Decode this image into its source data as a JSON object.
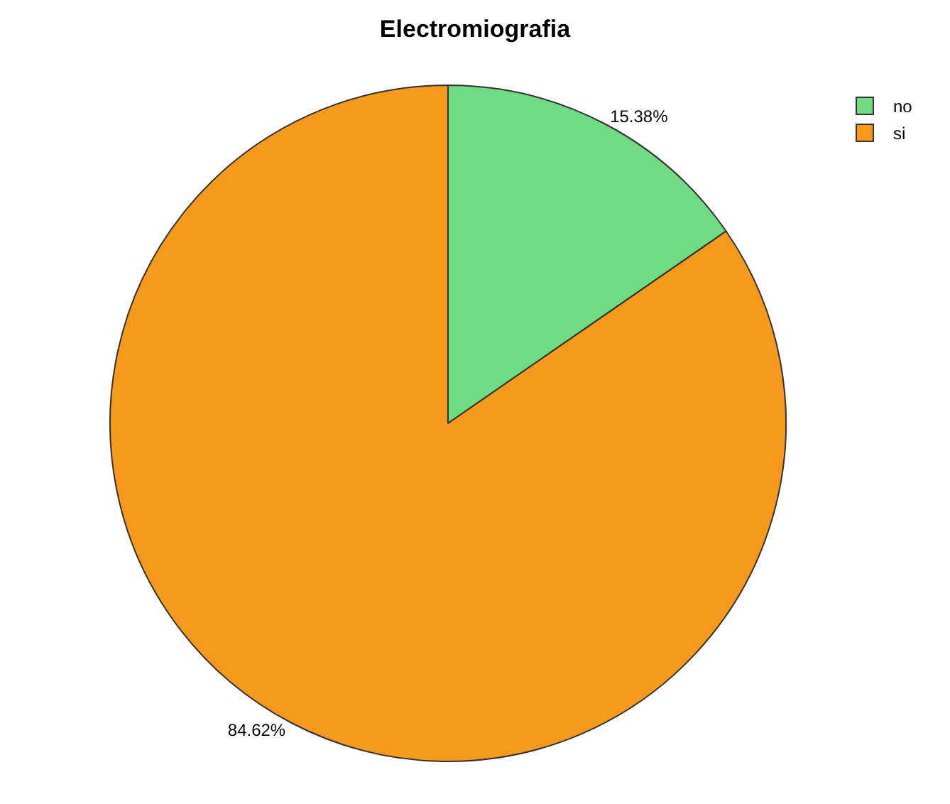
{
  "chart_data": {
    "type": "pie",
    "title": "Electromiografia",
    "categories": [
      "no",
      "si"
    ],
    "values": [
      15.38,
      84.62
    ],
    "value_labels": [
      "15.38%",
      "84.62%"
    ],
    "colors": [
      "#6fdc84",
      "#f7991d"
    ],
    "legend": "top right"
  }
}
